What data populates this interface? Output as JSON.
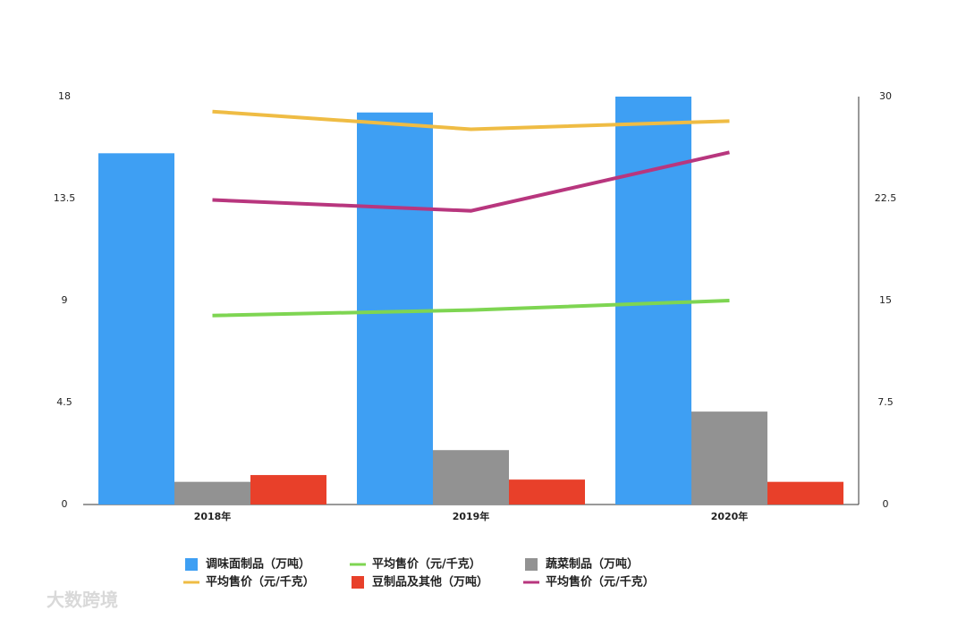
{
  "chart_data": {
    "type": "bar",
    "categories": [
      "2018年",
      "2019年",
      "2020年"
    ],
    "ylim": [
      0,
      18
    ],
    "yticks": [
      0,
      4.5,
      9,
      13.5,
      18
    ],
    "y2lim": [
      0,
      30
    ],
    "y2ticks": [
      0,
      7.5,
      15,
      22.5,
      30
    ],
    "series": [
      {
        "name": "调味面制品（万吨）",
        "type": "bar",
        "color": "#3e9ff3",
        "values": [
          15.5,
          17.3,
          18.0
        ]
      },
      {
        "name": "平均售价（元/千克）",
        "type": "line",
        "axis": "y2",
        "color": "#7ed552",
        "values": [
          13.9,
          14.3,
          15.0
        ]
      },
      {
        "name": "蔬菜制品（万吨）",
        "type": "bar",
        "color": "#929292",
        "values": [
          1.0,
          2.4,
          4.1
        ]
      },
      {
        "name": "平均售价（元/千克）",
        "type": "line",
        "axis": "y2",
        "color": "#efbc44",
        "values": [
          28.9,
          27.6,
          28.2
        ]
      },
      {
        "name": "豆制品及其他（万吨）",
        "type": "bar",
        "color": "#e8402a",
        "values": [
          1.3,
          1.1,
          1.0
        ]
      },
      {
        "name": "平均售价（元/千克）",
        "type": "line",
        "axis": "y2",
        "color": "#b8367e",
        "values": [
          22.4,
          21.6,
          25.9
        ]
      }
    ],
    "watermark": "大数跨境"
  }
}
